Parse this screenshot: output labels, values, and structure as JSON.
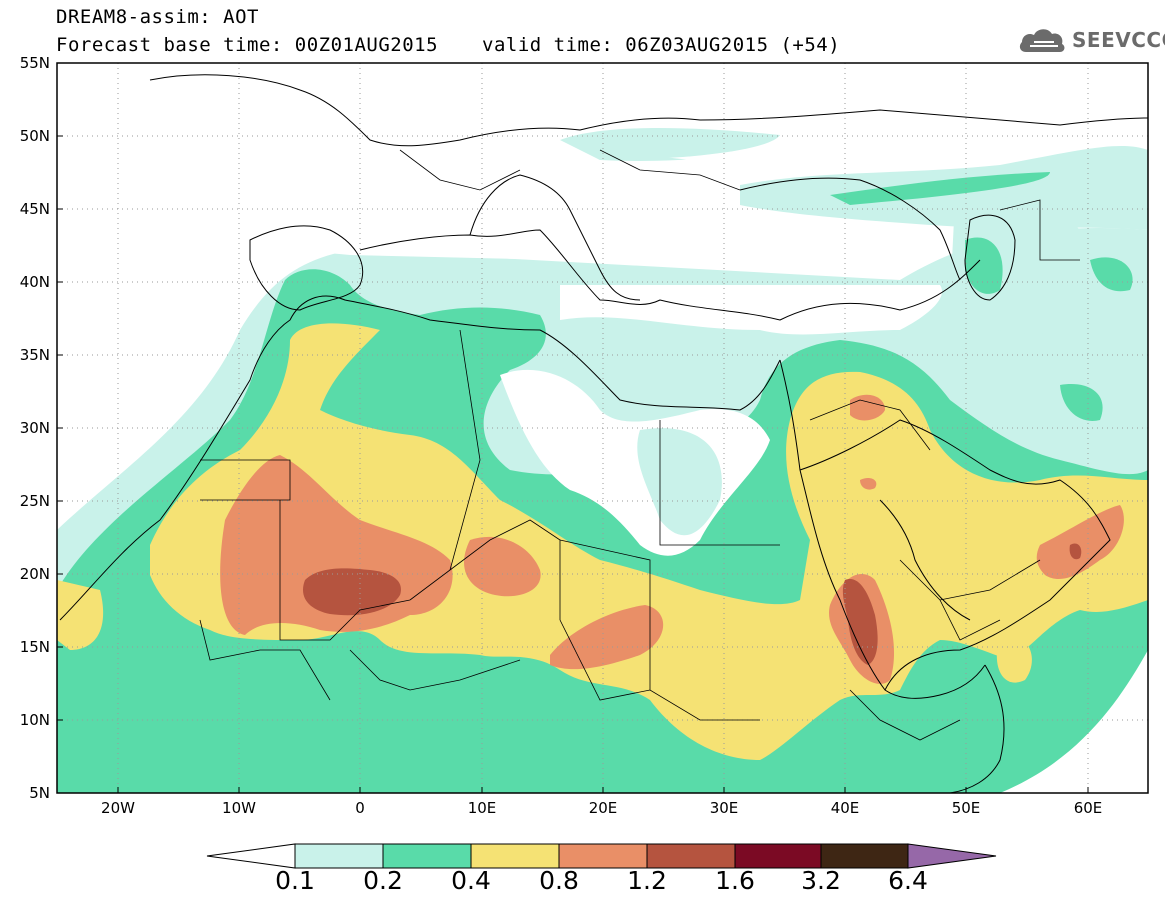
{
  "title": {
    "line1": "DREAM8-assim: AOT",
    "line2": "Forecast base time: 00Z01AUG2015",
    "line3": "valid time: 06Z03AUG2015 (+54)"
  },
  "logo": {
    "text": "SEEVCCC",
    "icon": "cloud-icon"
  },
  "map": {
    "lat_labels": [
      "55N",
      "50N",
      "45N",
      "40N",
      "35N",
      "30N",
      "25N",
      "20N",
      "15N",
      "10N",
      "5N"
    ],
    "lon_labels": [
      "20W",
      "10W",
      "0",
      "10E",
      "20E",
      "30E",
      "40E",
      "50E",
      "60E"
    ],
    "lon_range": [
      -25,
      65
    ],
    "lat_range": [
      5,
      55
    ],
    "grid": "dotted"
  },
  "colorbar": {
    "ticks": [
      "0.1",
      "0.2",
      "0.4",
      "0.8",
      "1.2",
      "1.6",
      "3.2",
      "6.4"
    ],
    "bins": [
      {
        "color": "#c9f2ea"
      },
      {
        "color": "#59dba9"
      },
      {
        "color": "#f5e274"
      },
      {
        "color": "#e98f67"
      },
      {
        "color": "#b5543f"
      },
      {
        "color": "#7b0a24"
      },
      {
        "color": "#3e2614"
      }
    ],
    "low_color": "#ffffff",
    "high_color": "#9668a8"
  }
}
